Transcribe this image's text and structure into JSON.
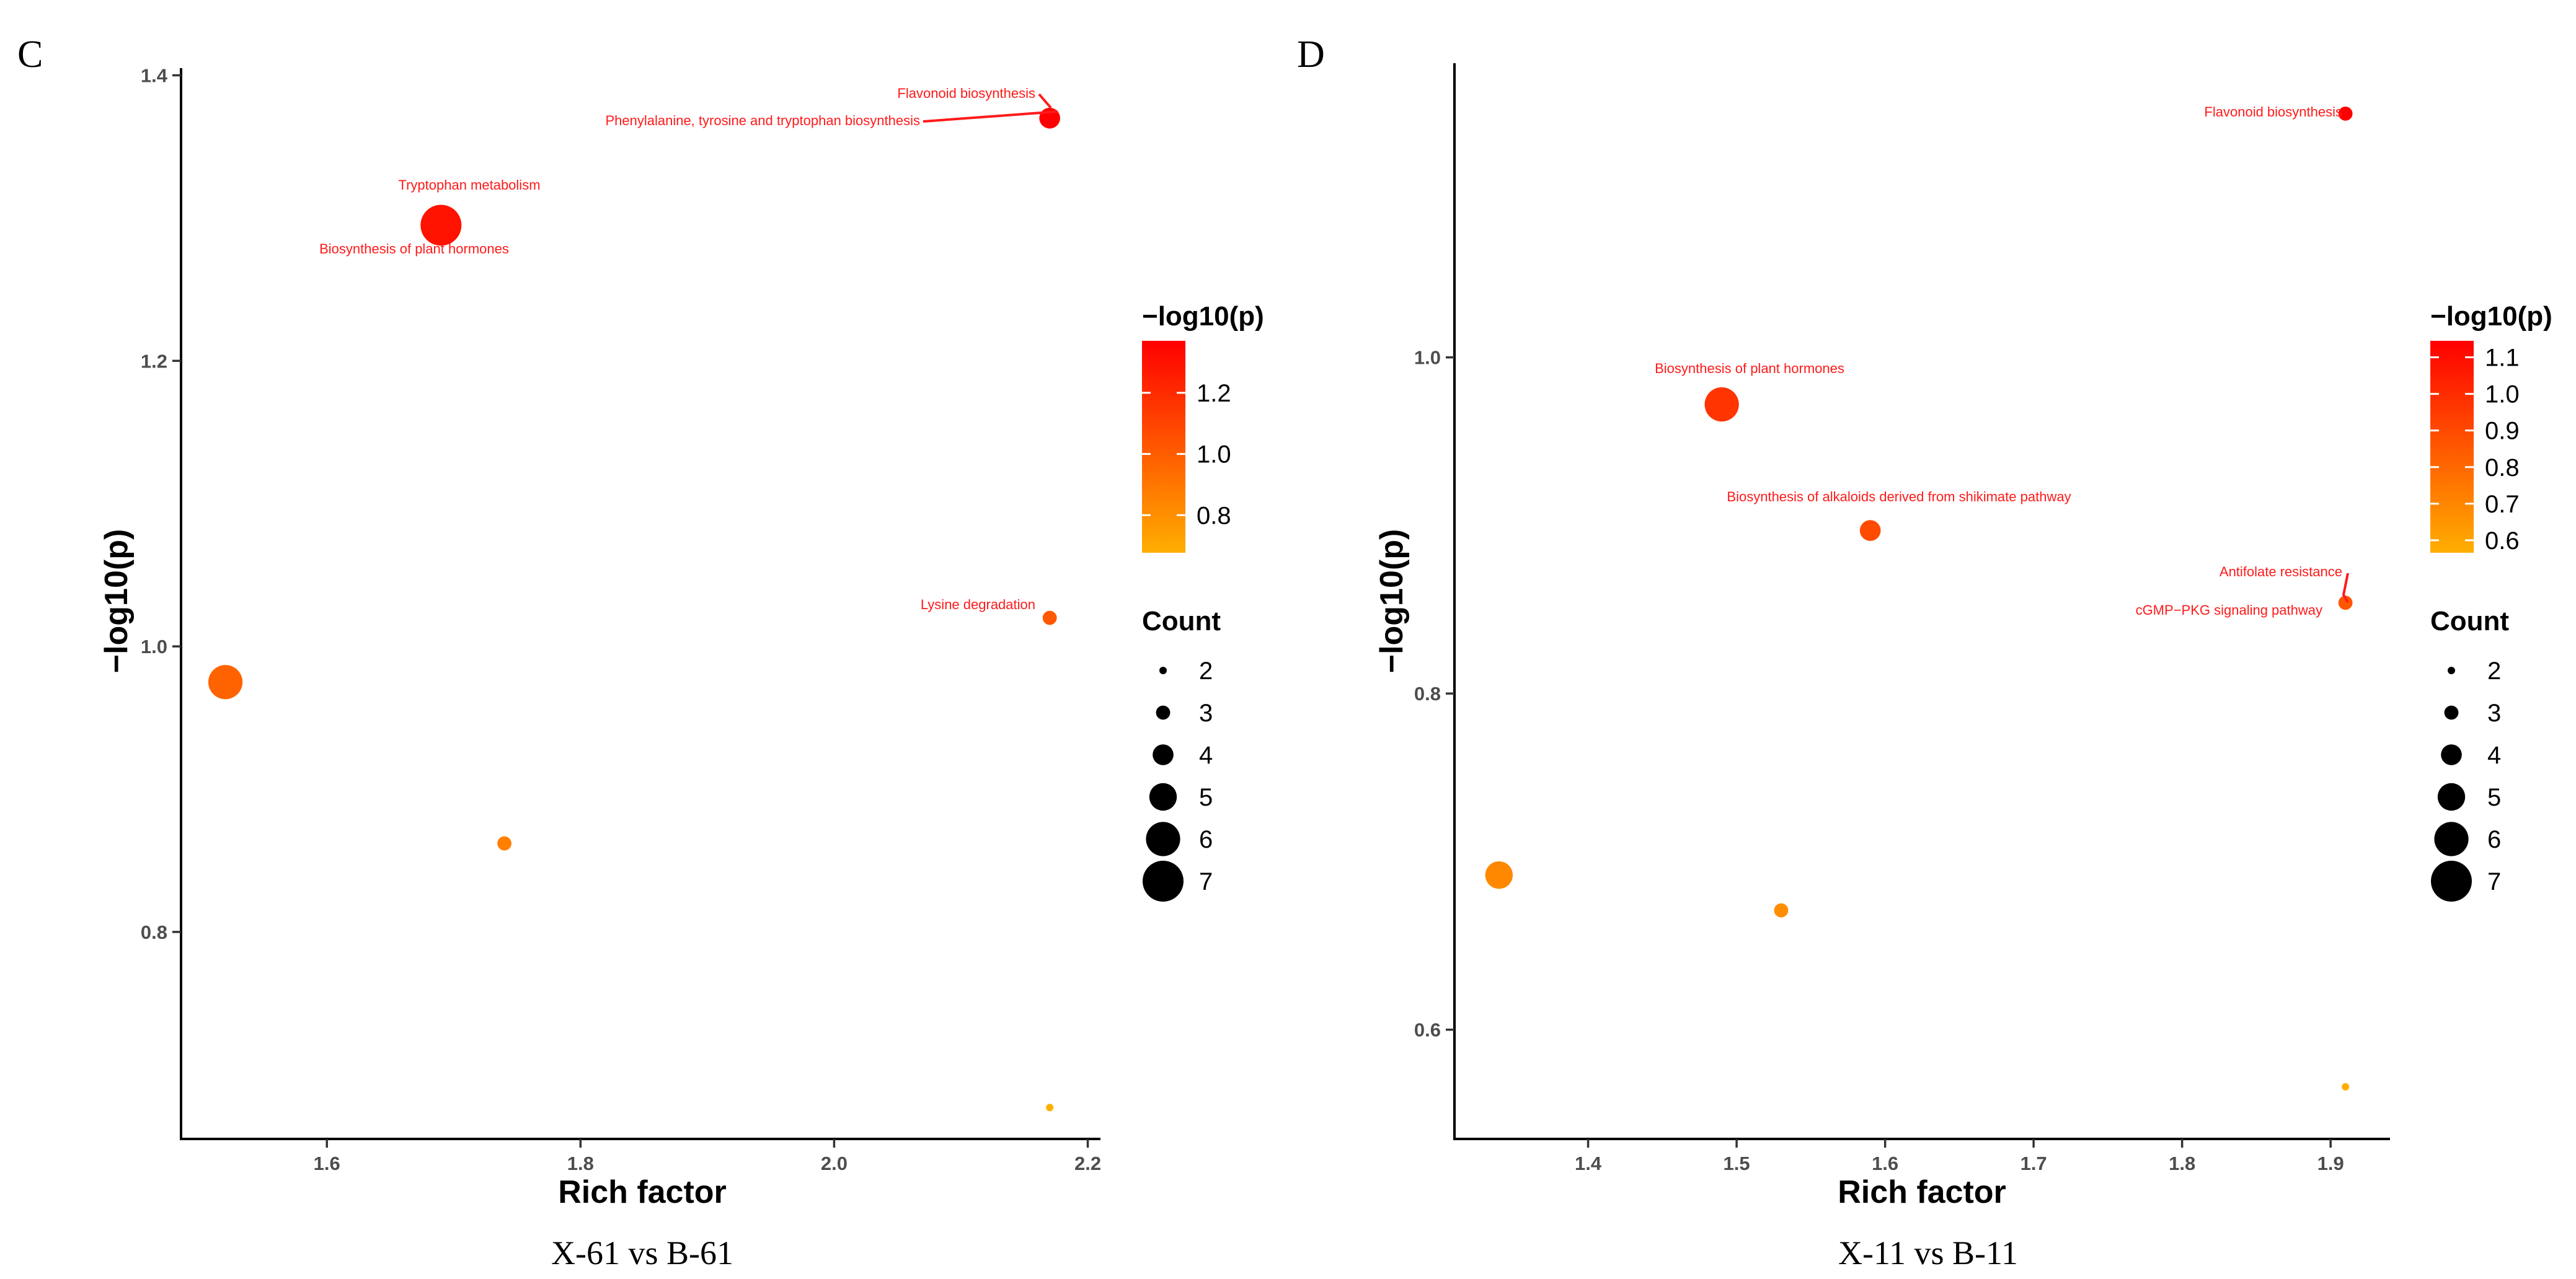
{
  "colors": {
    "low": "#ffae00",
    "high": "#ff0000",
    "text": "#ff1a1a"
  },
  "chart_data": [
    {
      "type": "scatter",
      "panel_label": "C",
      "caption": "X-61 vs B-61",
      "xlabel": "Rich factor",
      "ylabel": "−log10(p)",
      "xlim": [
        1.485,
        2.21
      ],
      "ylim": [
        0.655,
        1.405
      ],
      "xticks": [
        1.6,
        1.8,
        2.0,
        2.2
      ],
      "xtick_labels": [
        "1.6",
        "1.8",
        "2.0",
        "2.2"
      ],
      "yticks": [
        0.8,
        1.0,
        1.2,
        1.4
      ],
      "ytick_labels": [
        "0.8",
        "1.0",
        "1.2",
        "1.4"
      ],
      "grid": false,
      "points": [
        {
          "x": 2.17,
          "y": 1.37,
          "count": 4,
          "label": "Flavonoid biosynthesis"
        },
        {
          "x": 2.17,
          "y": 1.37,
          "count": 4,
          "label": "Phenylalanine, tyrosine and tryptophan biosynthesis"
        },
        {
          "x": 1.69,
          "y": 1.295,
          "count": 7,
          "label": "Tryptophan metabolism"
        },
        {
          "x": 1.69,
          "y": 1.295,
          "count": 7,
          "label": "Biosynthesis of plant hormones"
        },
        {
          "x": 2.17,
          "y": 1.02,
          "count": 3,
          "label": "Lysine degradation"
        },
        {
          "x": 1.52,
          "y": 0.975,
          "count": 6,
          "label": ""
        },
        {
          "x": 1.74,
          "y": 0.862,
          "count": 3,
          "label": ""
        },
        {
          "x": 2.17,
          "y": 0.677,
          "count": 2,
          "label": ""
        }
      ],
      "color_legend": {
        "title": "−log10(p)",
        "min": 0.677,
        "max": 1.37,
        "ticks": [
          1.2,
          1.0,
          0.8
        ],
        "tick_labels": [
          "1.2",
          "1.0",
          "0.8"
        ]
      },
      "size_legend": {
        "title": "Count",
        "values": [
          2,
          3,
          4,
          5,
          6,
          7
        ],
        "labels": [
          "2",
          "3",
          "4",
          "5",
          "6",
          "7"
        ]
      }
    },
    {
      "type": "scatter",
      "panel_label": "D",
      "caption": "X-11 vs B-11",
      "xlabel": "Rich factor",
      "ylabel": "−log10(p)",
      "xlim": [
        1.31,
        1.94
      ],
      "ylim": [
        0.535,
        1.175
      ],
      "xticks": [
        1.4,
        1.5,
        1.6,
        1.7,
        1.8,
        1.9
      ],
      "xtick_labels": [
        "1.4",
        "1.5",
        "1.6",
        "1.7",
        "1.8",
        "1.9"
      ],
      "yticks": [
        0.6,
        0.8,
        1.0
      ],
      "ytick_labels": [
        "0.6",
        "0.8",
        "1.0"
      ],
      "grid": false,
      "points": [
        {
          "x": 1.91,
          "y": 1.145,
          "count": 3,
          "label": "Flavonoid biosynthesis"
        },
        {
          "x": 1.49,
          "y": 0.972,
          "count": 6,
          "label": "Biosynthesis of plant hormones"
        },
        {
          "x": 1.59,
          "y": 0.897,
          "count": 4,
          "label": "Biosynthesis of alkaloids derived from shikimate pathway"
        },
        {
          "x": 1.91,
          "y": 0.854,
          "count": 3,
          "label": "Antifolate resistance"
        },
        {
          "x": 1.91,
          "y": 0.854,
          "count": 3,
          "label": "cGMP−PKG signaling pathway"
        },
        {
          "x": 1.34,
          "y": 0.692,
          "count": 5,
          "label": ""
        },
        {
          "x": 1.53,
          "y": 0.671,
          "count": 3,
          "label": ""
        },
        {
          "x": 1.91,
          "y": 0.566,
          "count": 2,
          "label": ""
        }
      ],
      "color_legend": {
        "title": "−log10(p)",
        "min": 0.566,
        "max": 1.145,
        "ticks": [
          1.1,
          1.0,
          0.9,
          0.8,
          0.7,
          0.6
        ],
        "tick_labels": [
          "1.1",
          "1.0",
          "0.9",
          "0.8",
          "0.7",
          "0.6"
        ]
      },
      "size_legend": {
        "title": "Count",
        "values": [
          2,
          3,
          4,
          5,
          6,
          7
        ],
        "labels": [
          "2",
          "3",
          "4",
          "5",
          "6",
          "7"
        ]
      }
    }
  ]
}
